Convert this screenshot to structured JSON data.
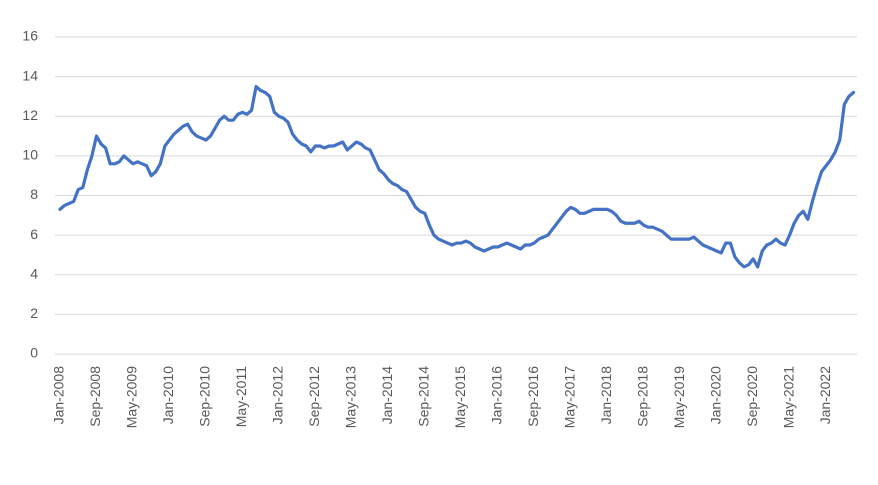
{
  "chart_data": {
    "type": "line",
    "categories": [
      "Jan-2008",
      null,
      null,
      null,
      null,
      null,
      null,
      null,
      "Sep-2008",
      null,
      null,
      null,
      null,
      null,
      null,
      null,
      "May-2009",
      null,
      null,
      null,
      null,
      null,
      null,
      null,
      "Jan-2010",
      null,
      null,
      null,
      null,
      null,
      null,
      null,
      "Sep-2010",
      null,
      null,
      null,
      null,
      null,
      null,
      null,
      "May-2011",
      null,
      null,
      null,
      null,
      null,
      null,
      null,
      "Jan-2012",
      null,
      null,
      null,
      null,
      null,
      null,
      null,
      "Sep-2012",
      null,
      null,
      null,
      null,
      null,
      null,
      null,
      "May-2013",
      null,
      null,
      null,
      null,
      null,
      null,
      null,
      "Jan-2014",
      null,
      null,
      null,
      null,
      null,
      null,
      null,
      "Sep-2014",
      null,
      null,
      null,
      null,
      null,
      null,
      null,
      "May-2015",
      null,
      null,
      null,
      null,
      null,
      null,
      null,
      "Jan-2016",
      null,
      null,
      null,
      null,
      null,
      null,
      null,
      "Sep-2016",
      null,
      null,
      null,
      null,
      null,
      null,
      null,
      "May-2017",
      null,
      null,
      null,
      null,
      null,
      null,
      null,
      "Jan-2018",
      null,
      null,
      null,
      null,
      null,
      null,
      null,
      "Sep-2018",
      null,
      null,
      null,
      null,
      null,
      null,
      null,
      "May-2019",
      null,
      null,
      null,
      null,
      null,
      null,
      null,
      "Jan-2020",
      null,
      null,
      null,
      null,
      null,
      null,
      null,
      "Sep-2020",
      null,
      null,
      null,
      null,
      null,
      null,
      null,
      "May-2021",
      null,
      null,
      null,
      null,
      null,
      null,
      null,
      "Jan-2022",
      null,
      null,
      null,
      null,
      null,
      null
    ],
    "values": [
      7.3,
      7.5,
      7.6,
      7.7,
      8.3,
      8.4,
      9.3,
      10.0,
      11.0,
      10.6,
      10.4,
      9.6,
      9.6,
      9.7,
      10.0,
      9.8,
      9.6,
      9.7,
      9.6,
      9.5,
      9.0,
      9.2,
      9.6,
      10.5,
      10.8,
      11.1,
      11.3,
      11.5,
      11.6,
      11.2,
      11.0,
      10.9,
      10.8,
      11.0,
      11.4,
      11.8,
      12.0,
      11.8,
      11.8,
      12.1,
      12.2,
      12.1,
      12.3,
      13.5,
      13.3,
      13.2,
      13.0,
      12.2,
      12.0,
      11.9,
      11.7,
      11.1,
      10.8,
      10.6,
      10.5,
      10.2,
      10.5,
      10.5,
      10.4,
      10.5,
      10.5,
      10.6,
      10.7,
      10.3,
      10.5,
      10.7,
      10.6,
      10.4,
      10.3,
      9.8,
      9.3,
      9.1,
      8.8,
      8.6,
      8.5,
      8.3,
      8.2,
      7.8,
      7.4,
      7.2,
      7.1,
      6.5,
      6.0,
      5.8,
      5.7,
      5.6,
      5.5,
      5.6,
      5.6,
      5.7,
      5.6,
      5.4,
      5.3,
      5.2,
      5.3,
      5.4,
      5.4,
      5.5,
      5.6,
      5.5,
      5.4,
      5.3,
      5.5,
      5.5,
      5.6,
      5.8,
      5.9,
      6.0,
      6.3,
      6.6,
      6.9,
      7.2,
      7.4,
      7.3,
      7.1,
      7.1,
      7.2,
      7.3,
      7.3,
      7.3,
      7.3,
      7.2,
      7.0,
      6.7,
      6.6,
      6.6,
      6.6,
      6.7,
      6.5,
      6.4,
      6.4,
      6.3,
      6.2,
      6.0,
      5.8,
      5.8,
      5.8,
      5.8,
      5.8,
      5.9,
      5.7,
      5.5,
      5.4,
      5.3,
      5.2,
      5.1,
      5.6,
      5.6,
      4.9,
      4.6,
      4.4,
      4.5,
      4.8,
      4.4,
      5.2,
      5.5,
      5.6,
      5.8,
      5.6,
      5.5,
      6.0,
      6.6,
      7.0,
      7.2,
      6.8,
      7.7,
      8.5,
      9.2,
      9.5,
      9.8,
      10.2,
      10.8,
      12.6,
      13.0,
      13.2
    ],
    "color": "#4472c4",
    "ylim": [
      0,
      16
    ],
    "yticks": [
      0,
      2,
      4,
      6,
      8,
      10,
      12,
      14,
      16
    ],
    "grid": true
  }
}
